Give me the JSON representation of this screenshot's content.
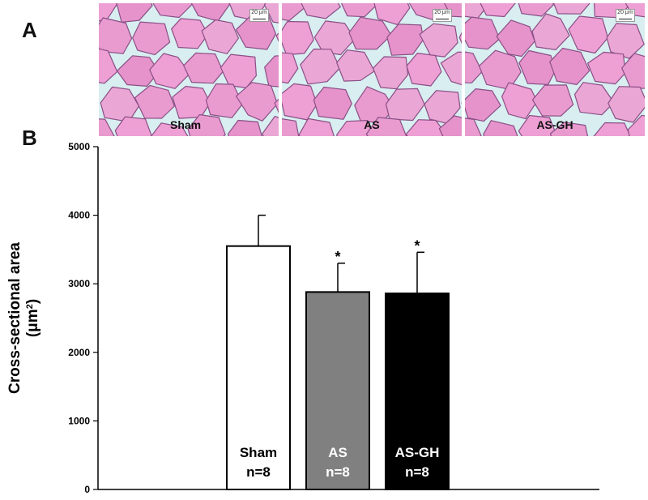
{
  "panels": {
    "a_label": "A",
    "b_label": "B"
  },
  "micrographs": [
    {
      "label": "Sham",
      "scale_label": "20 μm"
    },
    {
      "label": "AS",
      "scale_label": "20 μm"
    },
    {
      "label": "AS-GH",
      "scale_label": "20 μm"
    }
  ],
  "chart_data": {
    "type": "bar",
    "ylabel": "Cross-sectional area",
    "ylabel_unit_base": "(μm",
    "ylabel_unit_sup": "2",
    "ylabel_unit_close": ")",
    "ylim": [
      0,
      5000
    ],
    "yticks": [
      0,
      1000,
      2000,
      3000,
      4000,
      5000
    ],
    "grid": false,
    "categories": [
      "Sham",
      "AS",
      "AS-GH"
    ],
    "n_labels": [
      "n=8",
      "n=8",
      "n=8"
    ],
    "values": [
      3550,
      2880,
      2860
    ],
    "errors": [
      450,
      420,
      600
    ],
    "significance": [
      "",
      "*",
      "*"
    ],
    "colors": [
      "#ffffff",
      "#808080",
      "#000000"
    ],
    "label_colors": [
      "#000000",
      "#ffffff",
      "#ffffff"
    ]
  }
}
